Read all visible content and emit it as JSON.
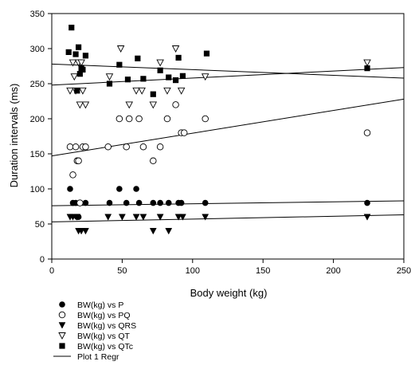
{
  "chart_data": {
    "type": "scatter",
    "xlabel": "Body weight (kg)",
    "ylabel": "Duration intervals (ms)",
    "xlim": [
      0,
      250
    ],
    "ylim": [
      0,
      350
    ],
    "xticks": [
      "0",
      "50",
      "100",
      "150",
      "200",
      "250"
    ],
    "yticks": [
      "0",
      "50",
      "100",
      "150",
      "200",
      "250",
      "300",
      "350"
    ],
    "grid": false,
    "legend_position": "bottom-left, below plot",
    "series": [
      {
        "name": "BW(kg) vs P",
        "marker": "filled-circle",
        "points": [
          [
            13,
            100
          ],
          [
            15,
            80
          ],
          [
            17,
            80
          ],
          [
            18,
            60
          ],
          [
            19,
            60
          ],
          [
            20,
            80
          ],
          [
            24,
            80
          ],
          [
            41,
            80
          ],
          [
            48,
            100
          ],
          [
            53,
            80
          ],
          [
            60,
            100
          ],
          [
            62,
            80
          ],
          [
            72,
            80
          ],
          [
            77,
            80
          ],
          [
            83,
            80
          ],
          [
            90,
            80
          ],
          [
            92,
            80
          ],
          [
            109,
            80
          ],
          [
            224,
            80
          ]
        ]
      },
      {
        "name": "BW(kg) vs PQ",
        "marker": "open-circle",
        "points": [
          [
            13,
            160
          ],
          [
            15,
            120
          ],
          [
            17,
            160
          ],
          [
            18,
            140
          ],
          [
            19,
            140
          ],
          [
            20,
            80
          ],
          [
            22,
            160
          ],
          [
            24,
            160
          ],
          [
            40,
            160
          ],
          [
            48,
            200
          ],
          [
            53,
            160
          ],
          [
            55,
            200
          ],
          [
            62,
            200
          ],
          [
            65,
            160
          ],
          [
            72,
            140
          ],
          [
            77,
            160
          ],
          [
            82,
            200
          ],
          [
            88,
            220
          ],
          [
            92,
            180
          ],
          [
            94,
            180
          ],
          [
            109,
            200
          ],
          [
            224,
            180
          ]
        ]
      },
      {
        "name": "BW(kg) vs QRS",
        "marker": "filled-triangle-down",
        "points": [
          [
            13,
            60
          ],
          [
            15,
            60
          ],
          [
            18,
            60
          ],
          [
            19,
            40
          ],
          [
            21,
            40
          ],
          [
            24,
            40
          ],
          [
            40,
            60
          ],
          [
            50,
            60
          ],
          [
            60,
            60
          ],
          [
            65,
            60
          ],
          [
            72,
            40
          ],
          [
            77,
            60
          ],
          [
            83,
            40
          ],
          [
            90,
            60
          ],
          [
            93,
            60
          ],
          [
            109,
            60
          ],
          [
            224,
            60
          ]
        ]
      },
      {
        "name": "BW(kg) vs QT",
        "marker": "open-triangle-down",
        "points": [
          [
            13,
            240
          ],
          [
            15,
            280
          ],
          [
            16,
            260
          ],
          [
            17,
            240
          ],
          [
            19,
            280
          ],
          [
            20,
            220
          ],
          [
            21,
            280
          ],
          [
            22,
            240
          ],
          [
            24,
            220
          ],
          [
            41,
            260
          ],
          [
            49,
            300
          ],
          [
            55,
            220
          ],
          [
            60,
            240
          ],
          [
            64,
            240
          ],
          [
            72,
            220
          ],
          [
            77,
            280
          ],
          [
            82,
            240
          ],
          [
            88,
            300
          ],
          [
            92,
            240
          ],
          [
            109,
            260
          ],
          [
            224,
            280
          ]
        ]
      },
      {
        "name": "BW(kg) vs QTc",
        "marker": "filled-square",
        "points": [
          [
            12,
            295
          ],
          [
            14,
            330
          ],
          [
            17,
            292
          ],
          [
            18,
            240
          ],
          [
            19,
            302
          ],
          [
            20,
            264
          ],
          [
            21,
            272
          ],
          [
            22,
            270
          ],
          [
            24,
            290
          ],
          [
            41,
            250
          ],
          [
            48,
            277
          ],
          [
            54,
            256
          ],
          [
            61,
            286
          ],
          [
            65,
            257
          ],
          [
            72,
            235
          ],
          [
            77,
            269
          ],
          [
            83,
            259
          ],
          [
            88,
            255
          ],
          [
            90,
            287
          ],
          [
            93,
            261
          ],
          [
            110,
            293
          ],
          [
            224,
            272
          ]
        ]
      }
    ],
    "regression_lines": [
      {
        "name": "Plot 1 Regr",
        "from": [
          0,
          76
        ],
        "to": [
          250,
          83
        ]
      },
      {
        "name": "Plot 1 Regr",
        "from": [
          0,
          53
        ],
        "to": [
          250,
          63
        ]
      },
      {
        "name": "Plot 1 Regr",
        "from": [
          0,
          147
        ],
        "to": [
          250,
          228
        ]
      },
      {
        "name": "Plot 1 Regr",
        "from": [
          0,
          278
        ],
        "to": [
          250,
          258
        ]
      },
      {
        "name": "Plot 1 Regr",
        "from": [
          0,
          248
        ],
        "to": [
          250,
          273
        ]
      }
    ],
    "legend": [
      {
        "label": "BW(kg) vs P",
        "marker": "filled-circle"
      },
      {
        "label": "BW(kg) vs PQ",
        "marker": "open-circle"
      },
      {
        "label": "BW(kg) vs QRS",
        "marker": "filled-triangle-down"
      },
      {
        "label": "BW(kg) vs QT",
        "marker": "open-triangle-down"
      },
      {
        "label": "BW(kg) vs QTc",
        "marker": "filled-square"
      },
      {
        "label": "Plot 1 Regr",
        "marker": "line"
      }
    ]
  }
}
